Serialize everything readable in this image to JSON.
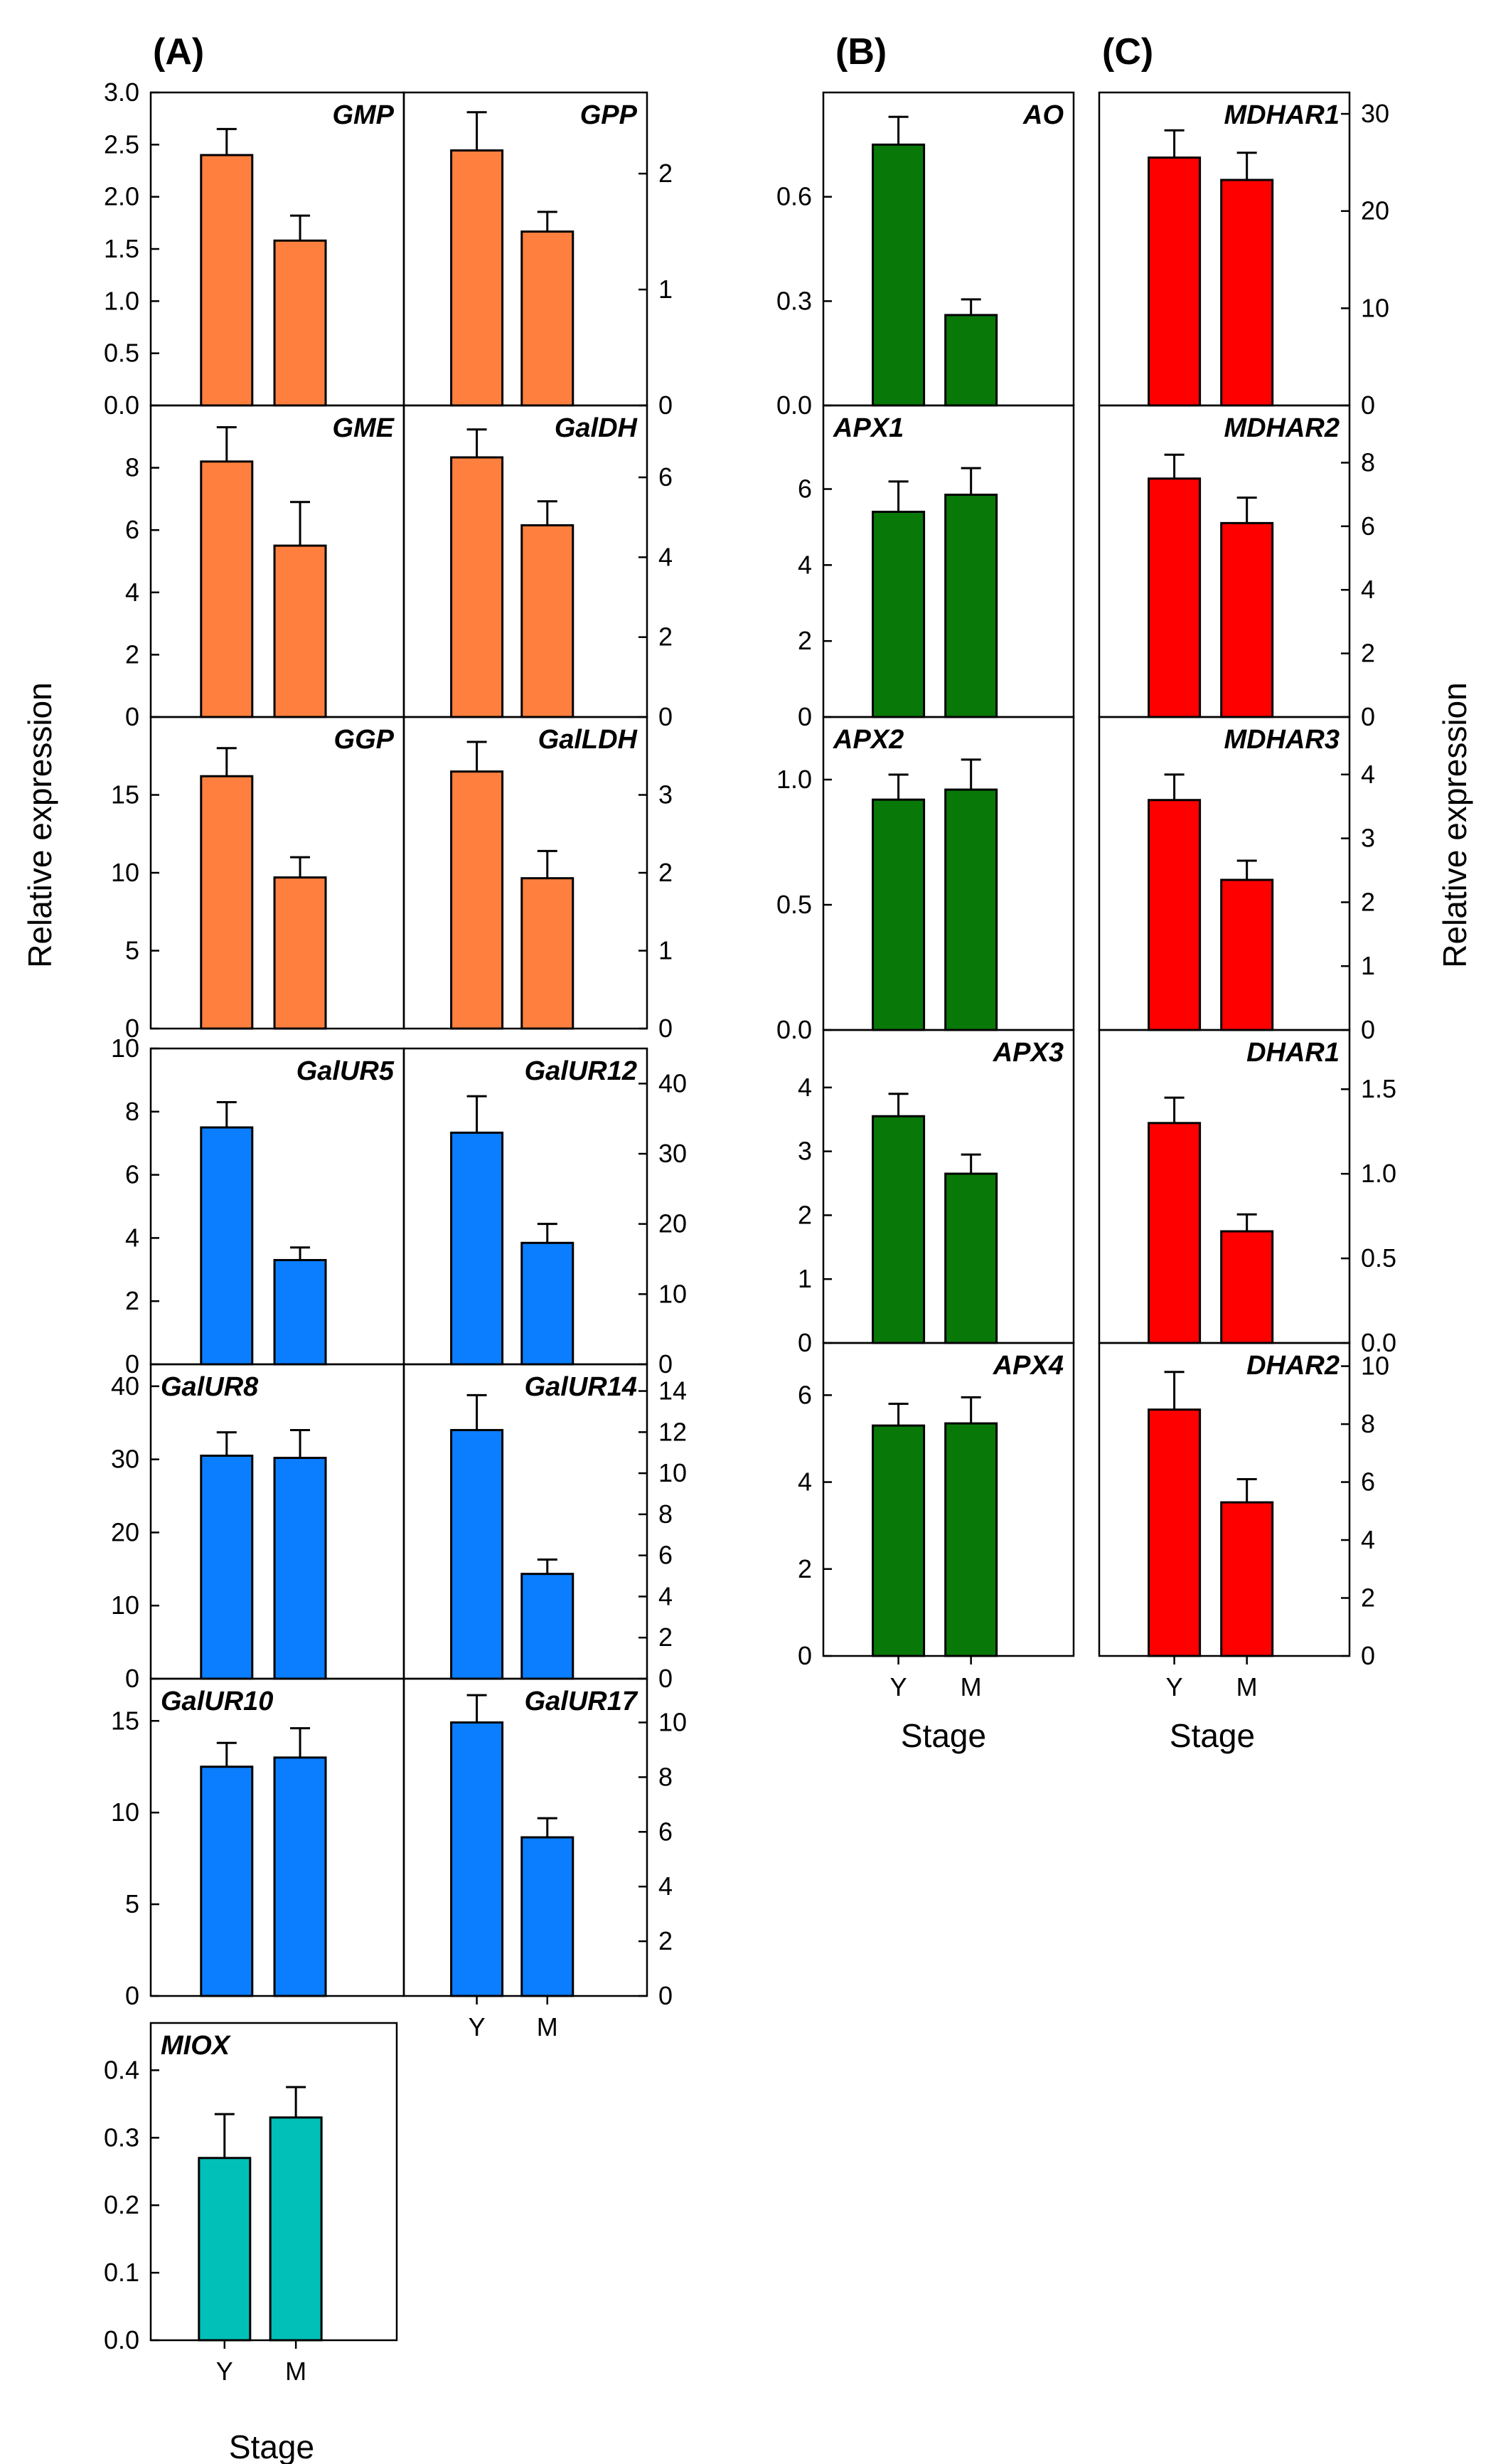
{
  "figure": {
    "panel_letters": [
      "(A)",
      "(B)",
      "(C)"
    ],
    "left_ylabel": "Relative expression",
    "right_ylabel": "Relative expression",
    "xlabel": "Stage",
    "stage_categories": [
      "Y",
      "M"
    ]
  },
  "colors": {
    "orange": "#FF7F3F",
    "blue": "#0A7EFF",
    "teal": "#00C0B8",
    "green": "#087808",
    "red": "#FF0000"
  },
  "chart_data": [
    {
      "type": "bar",
      "title": "GMP",
      "categories": [
        "Y",
        "M"
      ],
      "values": [
        2.4,
        1.58
      ],
      "errors": [
        0.25,
        0.24
      ],
      "ylim": [
        0,
        3
      ],
      "yticks": [
        0,
        0.5,
        1,
        1.5,
        2,
        2.5,
        3
      ],
      "color": "orange",
      "yaxis_side": "left"
    },
    {
      "type": "bar",
      "title": "GPP",
      "categories": [
        "Y",
        "M"
      ],
      "values": [
        2.2,
        1.5
      ],
      "errors": [
        0.33,
        0.17
      ],
      "ylim": [
        0,
        2.7
      ],
      "yticks": [
        0,
        1,
        2
      ],
      "color": "orange",
      "yaxis_side": "right"
    },
    {
      "type": "bar",
      "title": "GME",
      "categories": [
        "Y",
        "M"
      ],
      "values": [
        8.2,
        5.5
      ],
      "errors": [
        1.1,
        1.4
      ],
      "ylim": [
        0,
        10
      ],
      "yticks": [
        0,
        2,
        4,
        6,
        8
      ],
      "color": "orange",
      "yaxis_side": "left"
    },
    {
      "type": "bar",
      "title": "GalDH",
      "categories": [
        "Y",
        "M"
      ],
      "values": [
        6.5,
        4.8
      ],
      "errors": [
        0.7,
        0.6
      ],
      "ylim": [
        0,
        7.8
      ],
      "yticks": [
        0,
        2,
        4,
        6
      ],
      "color": "orange",
      "yaxis_side": "right"
    },
    {
      "type": "bar",
      "title": "GGP",
      "categories": [
        "Y",
        "M"
      ],
      "values": [
        16.2,
        9.7
      ],
      "errors": [
        1.8,
        1.3
      ],
      "ylim": [
        0,
        20
      ],
      "yticks": [
        0,
        5,
        10,
        15
      ],
      "color": "orange",
      "yaxis_side": "left"
    },
    {
      "type": "bar",
      "title": "GalLDH",
      "categories": [
        "Y",
        "M"
      ],
      "values": [
        3.3,
        1.93
      ],
      "errors": [
        0.38,
        0.35
      ],
      "ylim": [
        0,
        4
      ],
      "yticks": [
        0,
        1,
        2,
        3
      ],
      "color": "orange",
      "yaxis_side": "right"
    },
    {
      "type": "bar",
      "title": "GalUR5",
      "categories": [
        "Y",
        "M"
      ],
      "values": [
        7.5,
        3.3
      ],
      "errors": [
        0.8,
        0.4
      ],
      "ylim": [
        0,
        10
      ],
      "yticks": [
        0,
        2,
        4,
        6,
        8,
        10
      ],
      "color": "blue",
      "yaxis_side": "left"
    },
    {
      "type": "bar",
      "title": "GalUR12",
      "categories": [
        "Y",
        "M"
      ],
      "values": [
        33,
        17.3
      ],
      "errors": [
        5.2,
        2.7
      ],
      "ylim": [
        0,
        45
      ],
      "yticks": [
        0,
        10,
        20,
        30,
        40
      ],
      "color": "blue",
      "yaxis_side": "right"
    },
    {
      "type": "bar",
      "title": "GalUR8",
      "categories": [
        "Y",
        "M"
      ],
      "values": [
        30.5,
        30.2
      ],
      "errors": [
        3.2,
        3.8
      ],
      "ylim": [
        0,
        43
      ],
      "yticks": [
        0,
        10,
        20,
        30,
        40
      ],
      "color": "blue",
      "yaxis_side": "left"
    },
    {
      "type": "bar",
      "title": "GalUR14",
      "categories": [
        "Y",
        "M"
      ],
      "values": [
        12.1,
        5.1
      ],
      "errors": [
        1.7,
        0.7
      ],
      "ylim": [
        0,
        15.3
      ],
      "yticks": [
        0,
        2,
        4,
        6,
        8,
        10,
        12,
        14
      ],
      "color": "blue",
      "yaxis_side": "right"
    },
    {
      "type": "bar",
      "title": "GalUR10",
      "categories": [
        "Y",
        "M"
      ],
      "values": [
        12.5,
        13
      ],
      "errors": [
        1.3,
        1.6
      ],
      "ylim": [
        0,
        17.3
      ],
      "yticks": [
        0,
        5,
        10,
        15
      ],
      "color": "blue",
      "yaxis_side": "left"
    },
    {
      "type": "bar",
      "title": "GalUR17",
      "categories": [
        "Y",
        "M"
      ],
      "values": [
        10,
        5.8
      ],
      "errors": [
        1.0,
        0.7
      ],
      "ylim": [
        0,
        11.6
      ],
      "yticks": [
        0,
        2,
        4,
        6,
        8,
        10
      ],
      "color": "blue",
      "yaxis_side": "right"
    },
    {
      "type": "bar",
      "title": "MIOX",
      "categories": [
        "Y",
        "M"
      ],
      "values": [
        0.27,
        0.33
      ],
      "errors": [
        0.065,
        0.045
      ],
      "ylim": [
        0,
        0.47
      ],
      "yticks": [
        0,
        0.1,
        0.2,
        0.3,
        0.4
      ],
      "color": "teal",
      "yaxis_side": "left"
    },
    {
      "type": "bar",
      "title": "AO",
      "categories": [
        "Y",
        "M"
      ],
      "values": [
        0.75,
        0.26
      ],
      "errors": [
        0.08,
        0.045
      ],
      "ylim": [
        0,
        0.9
      ],
      "yticks": [
        0,
        0.3,
        0.6
      ],
      "color": "green",
      "yaxis_side": "left"
    },
    {
      "type": "bar",
      "title": "APX1",
      "categories": [
        "Y",
        "M"
      ],
      "values": [
        5.4,
        5.85
      ],
      "errors": [
        0.8,
        0.7
      ],
      "ylim": [
        0,
        8.2
      ],
      "yticks": [
        0,
        2,
        4,
        6
      ],
      "color": "green",
      "yaxis_side": "left"
    },
    {
      "type": "bar",
      "title": "APX2",
      "categories": [
        "Y",
        "M"
      ],
      "values": [
        0.92,
        0.96
      ],
      "errors": [
        0.1,
        0.12
      ],
      "ylim": [
        0,
        1.25
      ],
      "yticks": [
        0,
        0.5,
        1
      ],
      "color": "green",
      "yaxis_side": "left"
    },
    {
      "type": "bar",
      "title": "APX3",
      "categories": [
        "Y",
        "M"
      ],
      "values": [
        3.55,
        2.65
      ],
      "errors": [
        0.35,
        0.3
      ],
      "ylim": [
        0,
        4.9
      ],
      "yticks": [
        0,
        1,
        2,
        3,
        4
      ],
      "color": "green",
      "yaxis_side": "left"
    },
    {
      "type": "bar",
      "title": "APX4",
      "categories": [
        "Y",
        "M"
      ],
      "values": [
        5.3,
        5.35
      ],
      "errors": [
        0.5,
        0.6
      ],
      "ylim": [
        0,
        7.2
      ],
      "yticks": [
        0,
        2,
        4,
        6
      ],
      "color": "green",
      "yaxis_side": "left"
    },
    {
      "type": "bar",
      "title": "MDHAR1",
      "categories": [
        "Y",
        "M"
      ],
      "values": [
        25.5,
        23.2
      ],
      "errors": [
        2.8,
        2.8
      ],
      "ylim": [
        0,
        32.2
      ],
      "yticks": [
        0,
        10,
        20,
        30
      ],
      "color": "red",
      "yaxis_side": "right"
    },
    {
      "type": "bar",
      "title": "MDHAR2",
      "categories": [
        "Y",
        "M"
      ],
      "values": [
        7.5,
        6.1
      ],
      "errors": [
        0.75,
        0.8
      ],
      "ylim": [
        0,
        9.8
      ],
      "yticks": [
        0,
        2,
        4,
        6,
        8
      ],
      "color": "red",
      "yaxis_side": "right"
    },
    {
      "type": "bar",
      "title": "MDHAR3",
      "categories": [
        "Y",
        "M"
      ],
      "values": [
        3.6,
        2.35
      ],
      "errors": [
        0.4,
        0.3
      ],
      "ylim": [
        0,
        4.9
      ],
      "yticks": [
        0,
        1,
        2,
        3,
        4
      ],
      "color": "red",
      "yaxis_side": "right"
    },
    {
      "type": "bar",
      "title": "DHAR1",
      "categories": [
        "Y",
        "M"
      ],
      "values": [
        1.3,
        0.66
      ],
      "errors": [
        0.15,
        0.1
      ],
      "ylim": [
        0,
        1.85
      ],
      "yticks": [
        0,
        0.5,
        1,
        1.5
      ],
      "color": "red",
      "yaxis_side": "right"
    },
    {
      "type": "bar",
      "title": "DHAR2",
      "categories": [
        "Y",
        "M"
      ],
      "values": [
        8.5,
        5.3
      ],
      "errors": [
        1.3,
        0.8
      ],
      "ylim": [
        0,
        10.8
      ],
      "yticks": [
        0,
        2,
        4,
        6,
        8,
        10
      ],
      "color": "red",
      "yaxis_side": "right"
    }
  ]
}
